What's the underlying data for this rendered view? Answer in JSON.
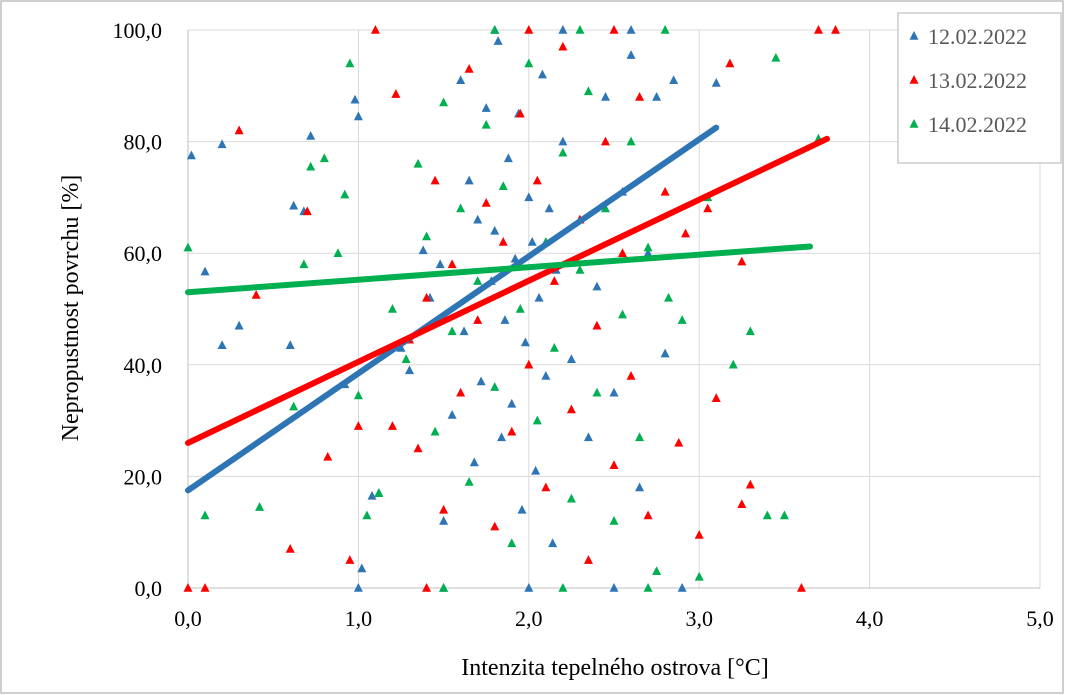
{
  "chart_data": {
    "type": "scatter",
    "xlabel": "Intenzita tepelného ostrova [°C]",
    "ylabel": "Nepropustnost povrchu [%]",
    "xlim": [
      0,
      5
    ],
    "ylim": [
      0,
      100
    ],
    "x_ticks": [
      "0,0",
      "1,0",
      "2,0",
      "3,0",
      "4,0",
      "5,0"
    ],
    "y_ticks": [
      "0,0",
      "20,0",
      "40,0",
      "60,0",
      "80,0",
      "100,0"
    ],
    "grid": true,
    "legend_position": "top-right",
    "series": [
      {
        "name": "12.02.2022",
        "color": "#2e75b6",
        "marker": "triangle",
        "points": [
          [
            0.02,
            77.5
          ],
          [
            0.2,
            79.5
          ],
          [
            0.1,
            56.7
          ],
          [
            0.2,
            43.5
          ],
          [
            0.3,
            47
          ],
          [
            0.6,
            43.5
          ],
          [
            0.62,
            68.5
          ],
          [
            0.68,
            67.5
          ],
          [
            0.72,
            81
          ],
          [
            0.92,
            36.5
          ],
          [
            0.98,
            87.5
          ],
          [
            1.0,
            84.5
          ],
          [
            1.02,
            3.5
          ],
          [
            1.08,
            16.5
          ],
          [
            1.12,
            17
          ],
          [
            1.25,
            43
          ],
          [
            1.3,
            39
          ],
          [
            1.38,
            60.5
          ],
          [
            1.42,
            52
          ],
          [
            1.48,
            58
          ],
          [
            1.5,
            12
          ],
          [
            1.55,
            31
          ],
          [
            1.6,
            91
          ],
          [
            1.62,
            46
          ],
          [
            1.65,
            73
          ],
          [
            1.68,
            22.5
          ],
          [
            1.7,
            66
          ],
          [
            1.72,
            37
          ],
          [
            1.75,
            86
          ],
          [
            1.78,
            55
          ],
          [
            1.8,
            64
          ],
          [
            1.82,
            98
          ],
          [
            1.84,
            27
          ],
          [
            1.86,
            48
          ],
          [
            1.88,
            77
          ],
          [
            1.9,
            33
          ],
          [
            1.92,
            59
          ],
          [
            1.94,
            85
          ],
          [
            1.96,
            14
          ],
          [
            1.98,
            44
          ],
          [
            2.0,
            70
          ],
          [
            2.02,
            62
          ],
          [
            2.04,
            21
          ],
          [
            2.06,
            52
          ],
          [
            2.08,
            92
          ],
          [
            2.1,
            38
          ],
          [
            2.12,
            68
          ],
          [
            2.14,
            8
          ],
          [
            2.16,
            57
          ],
          [
            2.2,
            80
          ],
          [
            2.25,
            41
          ],
          [
            2.3,
            66
          ],
          [
            2.35,
            27
          ],
          [
            2.4,
            54
          ],
          [
            2.45,
            88
          ],
          [
            2.5,
            35
          ],
          [
            2.55,
            71
          ],
          [
            2.6,
            95.5
          ],
          [
            2.65,
            18
          ],
          [
            2.7,
            60
          ],
          [
            2.75,
            88
          ],
          [
            2.8,
            42
          ],
          [
            2.85,
            91
          ],
          [
            2.9,
            0
          ],
          [
            3.1,
            90.5
          ],
          [
            1.0,
            0
          ],
          [
            1.5,
            0
          ],
          [
            2.0,
            0
          ],
          [
            2.5,
            0
          ],
          [
            1.8,
            100
          ],
          [
            2.2,
            100
          ],
          [
            2.6,
            100
          ]
        ]
      },
      {
        "name": "13.02.2022",
        "color": "#ff0000",
        "marker": "triangle",
        "points": [
          [
            0.0,
            0
          ],
          [
            0.1,
            0
          ],
          [
            0.3,
            82
          ],
          [
            0.4,
            52.5
          ],
          [
            0.6,
            7
          ],
          [
            0.7,
            67.5
          ],
          [
            0.82,
            23.5
          ],
          [
            0.95,
            5
          ],
          [
            1.0,
            29
          ],
          [
            1.1,
            100
          ],
          [
            1.2,
            29
          ],
          [
            1.22,
            88.5
          ],
          [
            1.3,
            44.5
          ],
          [
            1.35,
            25
          ],
          [
            1.4,
            52
          ],
          [
            1.45,
            73
          ],
          [
            1.5,
            14
          ],
          [
            1.55,
            58
          ],
          [
            1.6,
            35
          ],
          [
            1.65,
            93
          ],
          [
            1.7,
            48
          ],
          [
            1.75,
            69
          ],
          [
            1.8,
            11
          ],
          [
            1.85,
            62
          ],
          [
            1.9,
            28
          ],
          [
            1.95,
            85
          ],
          [
            2.0,
            40
          ],
          [
            2.05,
            73
          ],
          [
            2.1,
            18
          ],
          [
            2.15,
            55
          ],
          [
            2.2,
            97
          ],
          [
            2.25,
            32
          ],
          [
            2.3,
            66
          ],
          [
            2.35,
            5
          ],
          [
            2.4,
            47
          ],
          [
            2.45,
            80
          ],
          [
            2.5,
            22
          ],
          [
            2.55,
            60
          ],
          [
            2.6,
            38
          ],
          [
            2.65,
            88
          ],
          [
            2.7,
            13
          ],
          [
            2.8,
            71
          ],
          [
            2.88,
            26
          ],
          [
            2.92,
            63.5
          ],
          [
            3.0,
            9.5
          ],
          [
            3.05,
            68
          ],
          [
            3.1,
            34
          ],
          [
            3.18,
            94
          ],
          [
            3.25,
            58.5
          ],
          [
            3.25,
            15
          ],
          [
            3.3,
            18.5
          ],
          [
            3.6,
            0
          ],
          [
            3.7,
            100
          ],
          [
            3.8,
            100
          ],
          [
            1.4,
            0
          ],
          [
            2.0,
            100
          ],
          [
            2.5,
            100
          ]
        ]
      },
      {
        "name": "14.02.2022",
        "color": "#00b050",
        "marker": "triangle",
        "points": [
          [
            0.0,
            61
          ],
          [
            0.1,
            13
          ],
          [
            0.42,
            14.5
          ],
          [
            0.62,
            32.5
          ],
          [
            0.68,
            58
          ],
          [
            0.72,
            75.5
          ],
          [
            0.8,
            77
          ],
          [
            0.88,
            60
          ],
          [
            0.92,
            70.5
          ],
          [
            0.95,
            94
          ],
          [
            1.0,
            34.5
          ],
          [
            1.05,
            13
          ],
          [
            1.12,
            17
          ],
          [
            1.2,
            50
          ],
          [
            1.28,
            41
          ],
          [
            1.35,
            76
          ],
          [
            1.4,
            63
          ],
          [
            1.45,
            28
          ],
          [
            1.5,
            87
          ],
          [
            1.55,
            46
          ],
          [
            1.6,
            68
          ],
          [
            1.65,
            19
          ],
          [
            1.7,
            55
          ],
          [
            1.75,
            83
          ],
          [
            1.8,
            36
          ],
          [
            1.85,
            72
          ],
          [
            1.9,
            8
          ],
          [
            1.95,
            50
          ],
          [
            2.0,
            94
          ],
          [
            2.05,
            30
          ],
          [
            2.1,
            62
          ],
          [
            2.15,
            43
          ],
          [
            2.2,
            78
          ],
          [
            2.25,
            16
          ],
          [
            2.3,
            57
          ],
          [
            2.35,
            89
          ],
          [
            2.4,
            35
          ],
          [
            2.45,
            68
          ],
          [
            2.5,
            12
          ],
          [
            2.55,
            49
          ],
          [
            2.6,
            80
          ],
          [
            2.65,
            27
          ],
          [
            2.7,
            61
          ],
          [
            2.75,
            3
          ],
          [
            2.82,
            52
          ],
          [
            2.9,
            48
          ],
          [
            3.0,
            2
          ],
          [
            3.05,
            70
          ],
          [
            3.2,
            40
          ],
          [
            3.3,
            46
          ],
          [
            3.4,
            13
          ],
          [
            3.45,
            95
          ],
          [
            3.5,
            13
          ],
          [
            3.7,
            80.5
          ],
          [
            1.5,
            0
          ],
          [
            2.2,
            0
          ],
          [
            2.7,
            0
          ],
          [
            1.8,
            100
          ],
          [
            2.3,
            100
          ],
          [
            2.8,
            100
          ]
        ]
      }
    ],
    "trendlines": [
      {
        "series": "12.02.2022",
        "color": "#2e75b6",
        "x": [
          0.0,
          3.1
        ],
        "y": [
          17.5,
          82.5
        ]
      },
      {
        "series": "13.02.2022",
        "color": "#ff0000",
        "x": [
          0.0,
          3.75
        ],
        "y": [
          26.0,
          80.5
        ]
      },
      {
        "series": "14.02.2022",
        "color": "#00b050",
        "x": [
          0.0,
          3.65
        ],
        "y": [
          53.0,
          61.2
        ]
      }
    ]
  }
}
